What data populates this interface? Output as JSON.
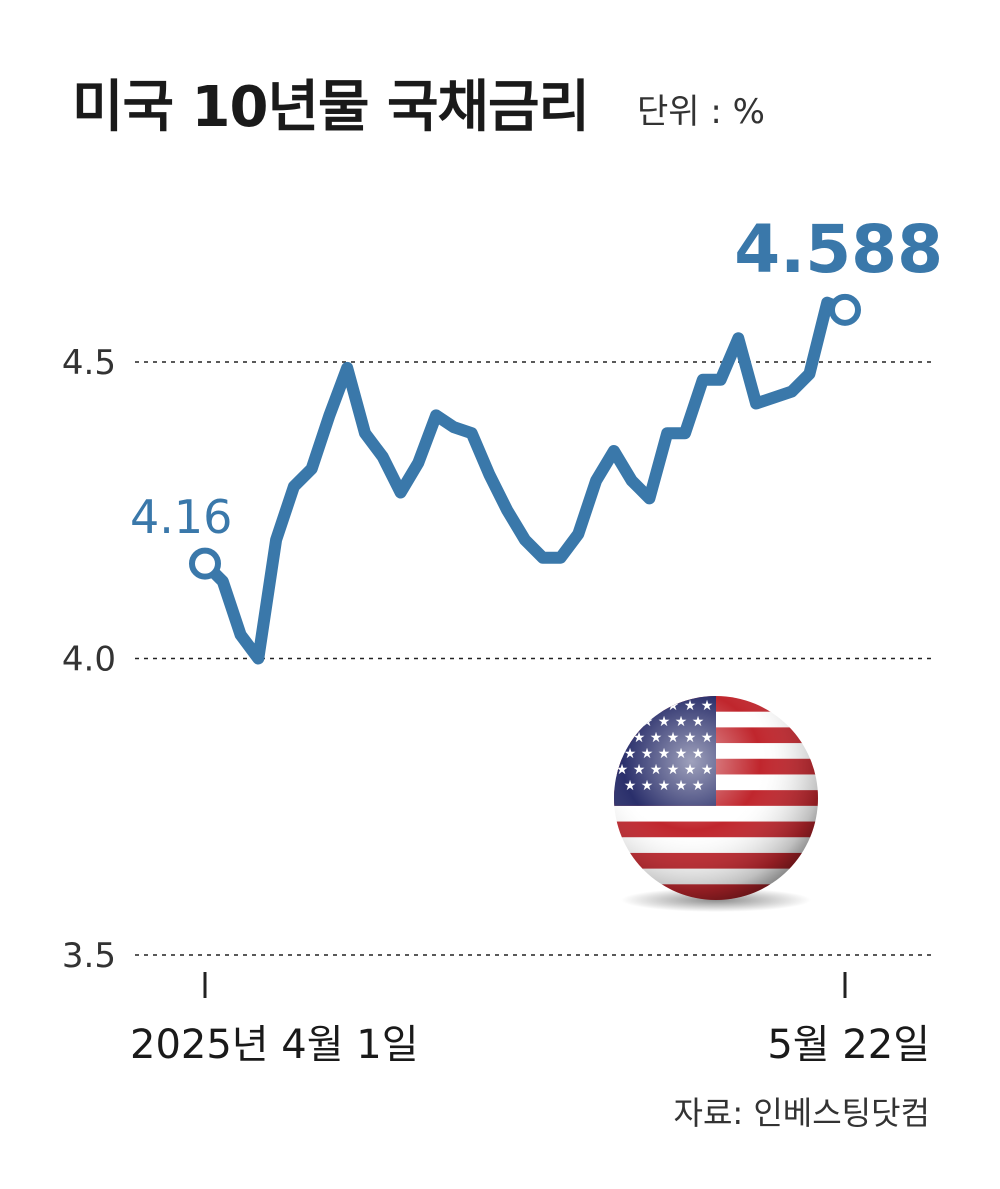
{
  "header": {
    "title": "미국 10년물 국채금리",
    "unit": "단위 : %"
  },
  "source": "자료: 인베스팅닷컴",
  "chart_data": {
    "type": "line",
    "title": "미국 10년물 국채금리",
    "unit": "%",
    "ylim": [
      3.5,
      4.6
    ],
    "yticks": [
      {
        "value": 3.5,
        "label": "3.5"
      },
      {
        "value": 4.0,
        "label": "4.0"
      },
      {
        "value": 4.5,
        "label": "4.5"
      }
    ],
    "grid": "dotted horizontal",
    "x_start_label": "2025년 4월 1일",
    "x_end_label": "5월 22일",
    "series": [
      {
        "color": "#3a78aa",
        "values": [
          4.16,
          4.13,
          4.04,
          4.0,
          4.2,
          4.29,
          4.32,
          4.41,
          4.49,
          4.38,
          4.34,
          4.28,
          4.33,
          4.41,
          4.39,
          4.38,
          4.31,
          4.25,
          4.2,
          4.17,
          4.17,
          4.21,
          4.3,
          4.35,
          4.3,
          4.27,
          4.38,
          4.38,
          4.47,
          4.47,
          4.54,
          4.43,
          4.44,
          4.45,
          4.48,
          4.6,
          4.588
        ]
      }
    ],
    "annotations": [
      {
        "label": "4.16",
        "value": 4.16,
        "position": "start"
      },
      {
        "label": "4.588",
        "value": 4.588,
        "position": "end"
      }
    ],
    "decoration": "us-flag-sphere"
  }
}
